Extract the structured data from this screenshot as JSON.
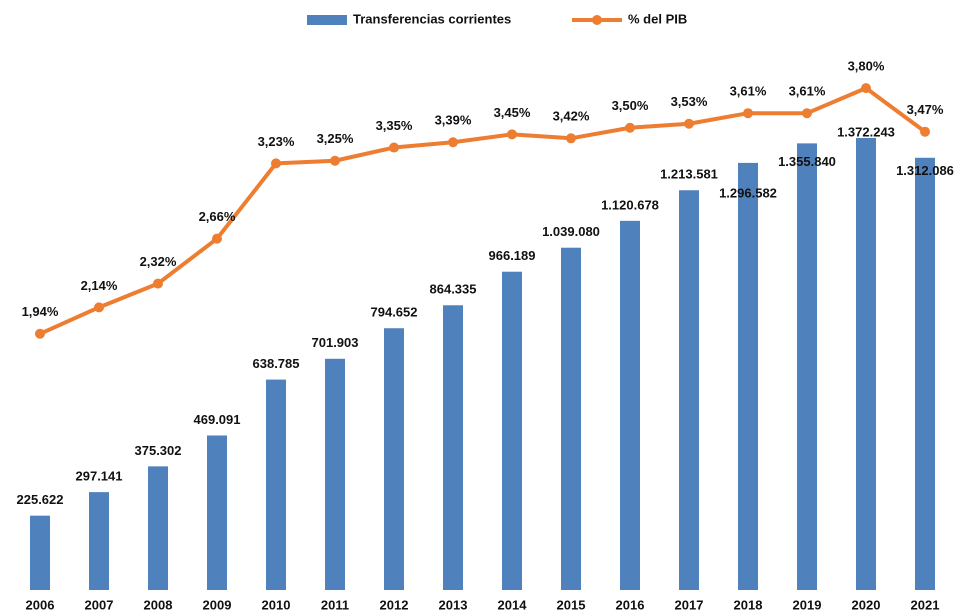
{
  "chart_data": {
    "type": "bar",
    "categories": [
      "2006",
      "2007",
      "2008",
      "2009",
      "2010",
      "2011",
      "2012",
      "2013",
      "2014",
      "2015",
      "2016",
      "2017",
      "2018",
      "2019",
      "2020",
      "2021"
    ],
    "series": [
      {
        "name": "Transferencias corrientes",
        "type": "bar",
        "color": "#4f81bd",
        "values": [
          225622,
          297141,
          375302,
          469091,
          638785,
          701903,
          794652,
          864335,
          966189,
          1039080,
          1120678,
          1213581,
          1296582,
          1355840,
          1372243,
          1312086
        ],
        "value_labels": [
          "225.622",
          "297.141",
          "375.302",
          "469.091",
          "638.785",
          "701.903",
          "794.652",
          "864.335",
          "966.189",
          "1.039.080",
          "1.120.678",
          "1.213.581",
          "1.296.582",
          "1.355.840",
          "1.372.243",
          "1.312.086"
        ]
      },
      {
        "name": "% del PIB",
        "type": "line",
        "axis": "y2",
        "color": "#ed7d31",
        "values": [
          1.94,
          2.14,
          2.32,
          2.66,
          3.23,
          3.25,
          3.35,
          3.39,
          3.45,
          3.42,
          3.5,
          3.53,
          3.61,
          3.61,
          3.8,
          3.47
        ],
        "value_labels": [
          "1,94%",
          "2,14%",
          "2,32%",
          "2,66%",
          "3,23%",
          "3,25%",
          "3,35%",
          "3,39%",
          "3,45%",
          "3,42%",
          "3,50%",
          "3,53%",
          "3,61%",
          "3,61%",
          "3,80%",
          "3,47%"
        ]
      }
    ],
    "ylim": [
      0,
      1700000
    ],
    "y2lim": [
      0,
      4.24
    ],
    "legend": "top"
  }
}
